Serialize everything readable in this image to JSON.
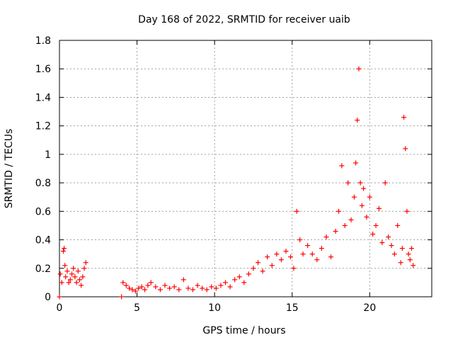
{
  "chart_data": {
    "type": "scatter",
    "title": "Day 168 of 2022, SRMTID for receiver uaib",
    "xlabel": "GPS time / hours",
    "ylabel": "SRMTID / TECUs",
    "xlim": [
      0,
      24
    ],
    "ylim": [
      0,
      1.8
    ],
    "xticks": [
      0,
      5,
      10,
      15,
      20
    ],
    "xtick_labels": [
      "0",
      "5",
      "10",
      "15",
      "20"
    ],
    "yticks": [
      0,
      0.2,
      0.4,
      0.6,
      0.8,
      1,
      1.2,
      1.4,
      1.6,
      1.8
    ],
    "ytick_labels": [
      "0",
      "0.2",
      "0.4",
      "0.6",
      "0.8",
      "1",
      "1.2",
      "1.4",
      "1.6",
      "1.8"
    ],
    "grid": true,
    "marker": "plus",
    "color": "#ff0000",
    "series": [
      {
        "name": "SRMTID",
        "x": [
          0.0,
          0.05,
          0.15,
          0.25,
          0.3,
          0.35,
          0.4,
          0.5,
          0.6,
          0.7,
          0.8,
          0.9,
          1.0,
          1.1,
          1.2,
          1.3,
          1.4,
          1.5,
          1.6,
          1.7,
          4.0,
          4.1,
          4.3,
          4.5,
          4.7,
          4.9,
          5.1,
          5.3,
          5.5,
          5.7,
          5.9,
          6.2,
          6.5,
          6.8,
          7.1,
          7.4,
          7.7,
          8.0,
          8.3,
          8.6,
          8.9,
          9.2,
          9.5,
          9.8,
          10.1,
          10.4,
          10.7,
          11.0,
          11.3,
          11.6,
          11.9,
          12.2,
          12.5,
          12.8,
          13.1,
          13.4,
          13.7,
          14.0,
          14.3,
          14.6,
          14.9,
          15.1,
          15.3,
          15.5,
          15.7,
          16.0,
          16.3,
          16.6,
          16.9,
          17.2,
          17.5,
          17.8,
          18.0,
          18.2,
          18.4,
          18.6,
          18.8,
          19.0,
          19.1,
          19.2,
          19.3,
          19.4,
          19.5,
          19.6,
          19.8,
          20.0,
          20.2,
          20.4,
          20.6,
          20.8,
          21.0,
          21.2,
          21.4,
          21.6,
          21.8,
          22.0,
          22.1,
          22.2,
          22.3,
          22.4,
          22.5,
          22.6,
          22.7,
          22.8
        ],
        "y": [
          0.0,
          0.16,
          0.1,
          0.32,
          0.34,
          0.22,
          0.14,
          0.18,
          0.1,
          0.12,
          0.16,
          0.2,
          0.14,
          0.1,
          0.18,
          0.12,
          0.08,
          0.14,
          0.2,
          0.24,
          0.0,
          0.1,
          0.08,
          0.06,
          0.05,
          0.04,
          0.06,
          0.07,
          0.05,
          0.08,
          0.1,
          0.07,
          0.05,
          0.08,
          0.06,
          0.07,
          0.05,
          0.12,
          0.06,
          0.05,
          0.08,
          0.06,
          0.05,
          0.07,
          0.06,
          0.08,
          0.1,
          0.07,
          0.12,
          0.14,
          0.1,
          0.16,
          0.2,
          0.24,
          0.18,
          0.28,
          0.22,
          0.3,
          0.26,
          0.32,
          0.28,
          0.2,
          0.6,
          0.4,
          0.3,
          0.36,
          0.3,
          0.26,
          0.34,
          0.42,
          0.28,
          0.46,
          0.6,
          0.92,
          0.5,
          0.8,
          0.54,
          0.7,
          0.94,
          1.24,
          1.6,
          0.8,
          0.64,
          0.76,
          0.56,
          0.7,
          0.44,
          0.5,
          0.62,
          0.38,
          0.8,
          0.42,
          0.36,
          0.3,
          0.5,
          0.24,
          0.34,
          1.26,
          1.04,
          0.6,
          0.3,
          0.26,
          0.34,
          0.22
        ]
      }
    ]
  }
}
